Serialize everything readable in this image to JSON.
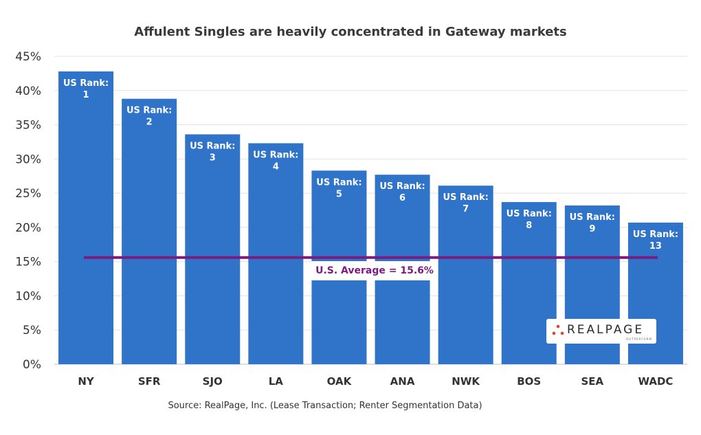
{
  "chart_data": {
    "type": "bar",
    "title": "Affulent Singles are heavily concentrated in Gateway markets",
    "categories": [
      "NY",
      "SFR",
      "SJO",
      "LA",
      "OAK",
      "ANA",
      "NWK",
      "BOS",
      "SEA",
      "WADC"
    ],
    "values": [
      42.8,
      38.8,
      33.6,
      32.3,
      28.3,
      27.7,
      26.1,
      23.7,
      23.2,
      20.7
    ],
    "rank_prefix": "US Rank:",
    "ranks": [
      "1",
      "2",
      "3",
      "4",
      "5",
      "6",
      "7",
      "8",
      "9",
      "13"
    ],
    "y_ticks": [
      "0%",
      "5%",
      "10%",
      "15%",
      "20%",
      "25%",
      "30%",
      "35%",
      "40%",
      "45%"
    ],
    "ylim": [
      0,
      45
    ],
    "y_tick_step": 5,
    "grid": true,
    "reference_line": {
      "value": 15.6,
      "label": "U.S. Average = 15.6%",
      "color": "#7b1b7e"
    },
    "bar_color": "#2f74c8"
  },
  "source": "Source: RealPage, Inc. (Lease Transaction; Renter Segmentation Data)",
  "logo": {
    "text": "REALPAGE",
    "tagline": "OUTPERFORM",
    "dot_color": "#e0442f"
  }
}
